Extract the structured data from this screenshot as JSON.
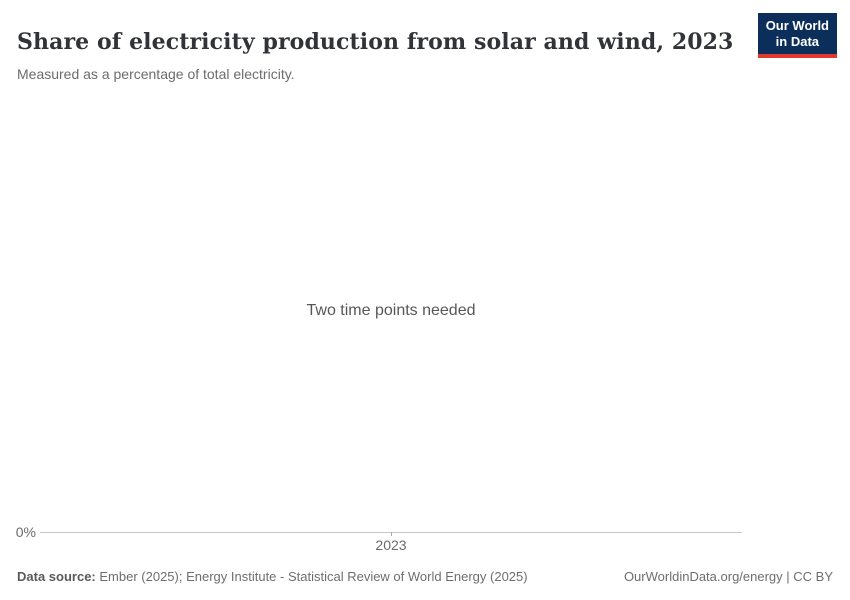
{
  "header": {
    "title": "Share of electricity production from solar and wind, 2023",
    "subtitle": "Measured as a percentage of total electricity.",
    "logo": {
      "line1": "Our World",
      "line2": "in Data"
    }
  },
  "chart": {
    "empty_message": "Two time points needed",
    "y_axis": {
      "tick": "0%"
    },
    "x_axis": {
      "tick": "2023"
    }
  },
  "chart_data": {
    "type": "line",
    "title": "Share of electricity production from solar and wind, 2023",
    "subtitle": "Measured as a percentage of total electricity.",
    "series": [],
    "x_tick_labels": [
      "2023"
    ],
    "y_tick_labels": [
      "0%"
    ],
    "empty_state_message": "Two time points needed",
    "grid": false,
    "legend_position": "none"
  },
  "footer": {
    "data_source_label": "Data source:",
    "data_source_value": "Ember (2025); Energy Institute - Statistical Review of World Energy (2025)",
    "link": "OurWorldinData.org/energy | CC BY"
  },
  "colors": {
    "logo_navy": "#0c2e5a",
    "logo_red": "#e0392f",
    "title_text": "#303338",
    "muted_text": "#6c6c6c",
    "axis_line": "#c6c6c6"
  }
}
